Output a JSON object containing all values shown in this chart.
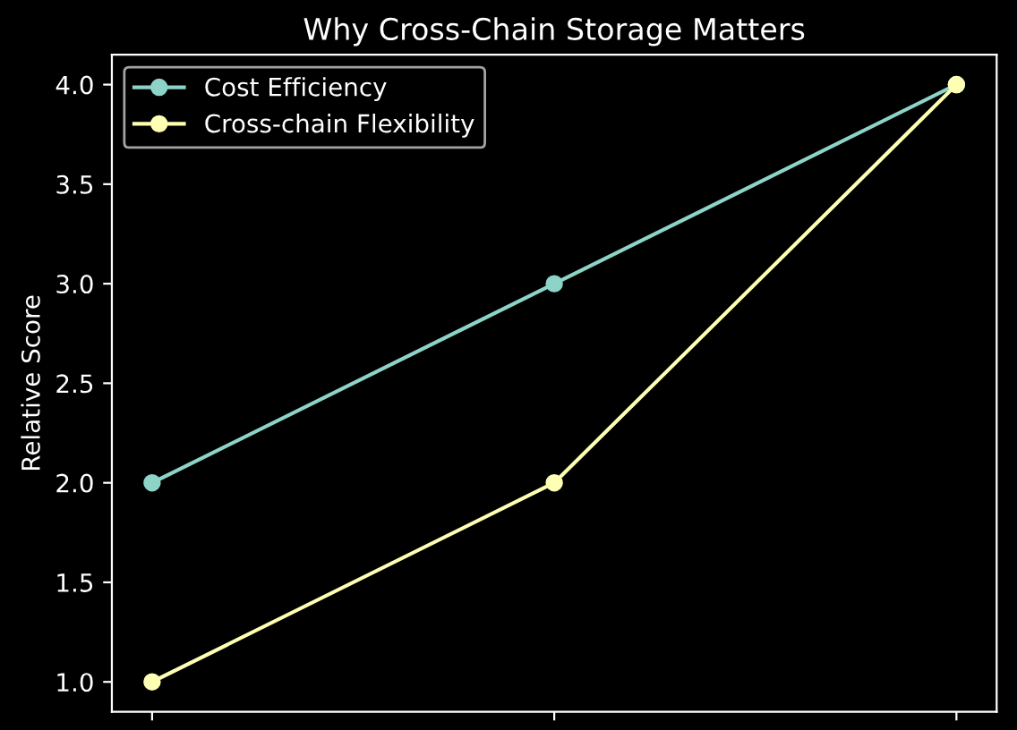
{
  "chart_data": {
    "type": "line",
    "title": "Why Cross-Chain Storage Matters",
    "ylabel": "Relative Score",
    "categories": [
      null,
      null,
      null
    ],
    "series": [
      {
        "name": "Cost Efficiency",
        "color": "#8dd3c7",
        "values": [
          2,
          3,
          4
        ]
      },
      {
        "name": "Cross-chain Flexibility",
        "color": "#feffb3",
        "values": [
          1,
          2,
          4
        ]
      }
    ],
    "ylim": [
      0.85,
      4.15
    ],
    "yticks": [
      {
        "value": 1,
        "label": "1.0"
      },
      {
        "value": 1.5,
        "label": "1.5"
      },
      {
        "value": 2,
        "label": "2.0"
      },
      {
        "value": 2.5,
        "label": "2.5"
      },
      {
        "value": 3,
        "label": "3.0"
      },
      {
        "value": 3.5,
        "label": "3.5"
      },
      {
        "value": 4,
        "label": "4.0"
      }
    ],
    "tick_labels": "y",
    "grid": false,
    "legend": "top left",
    "marker": "circle",
    "line_style": "solid"
  }
}
